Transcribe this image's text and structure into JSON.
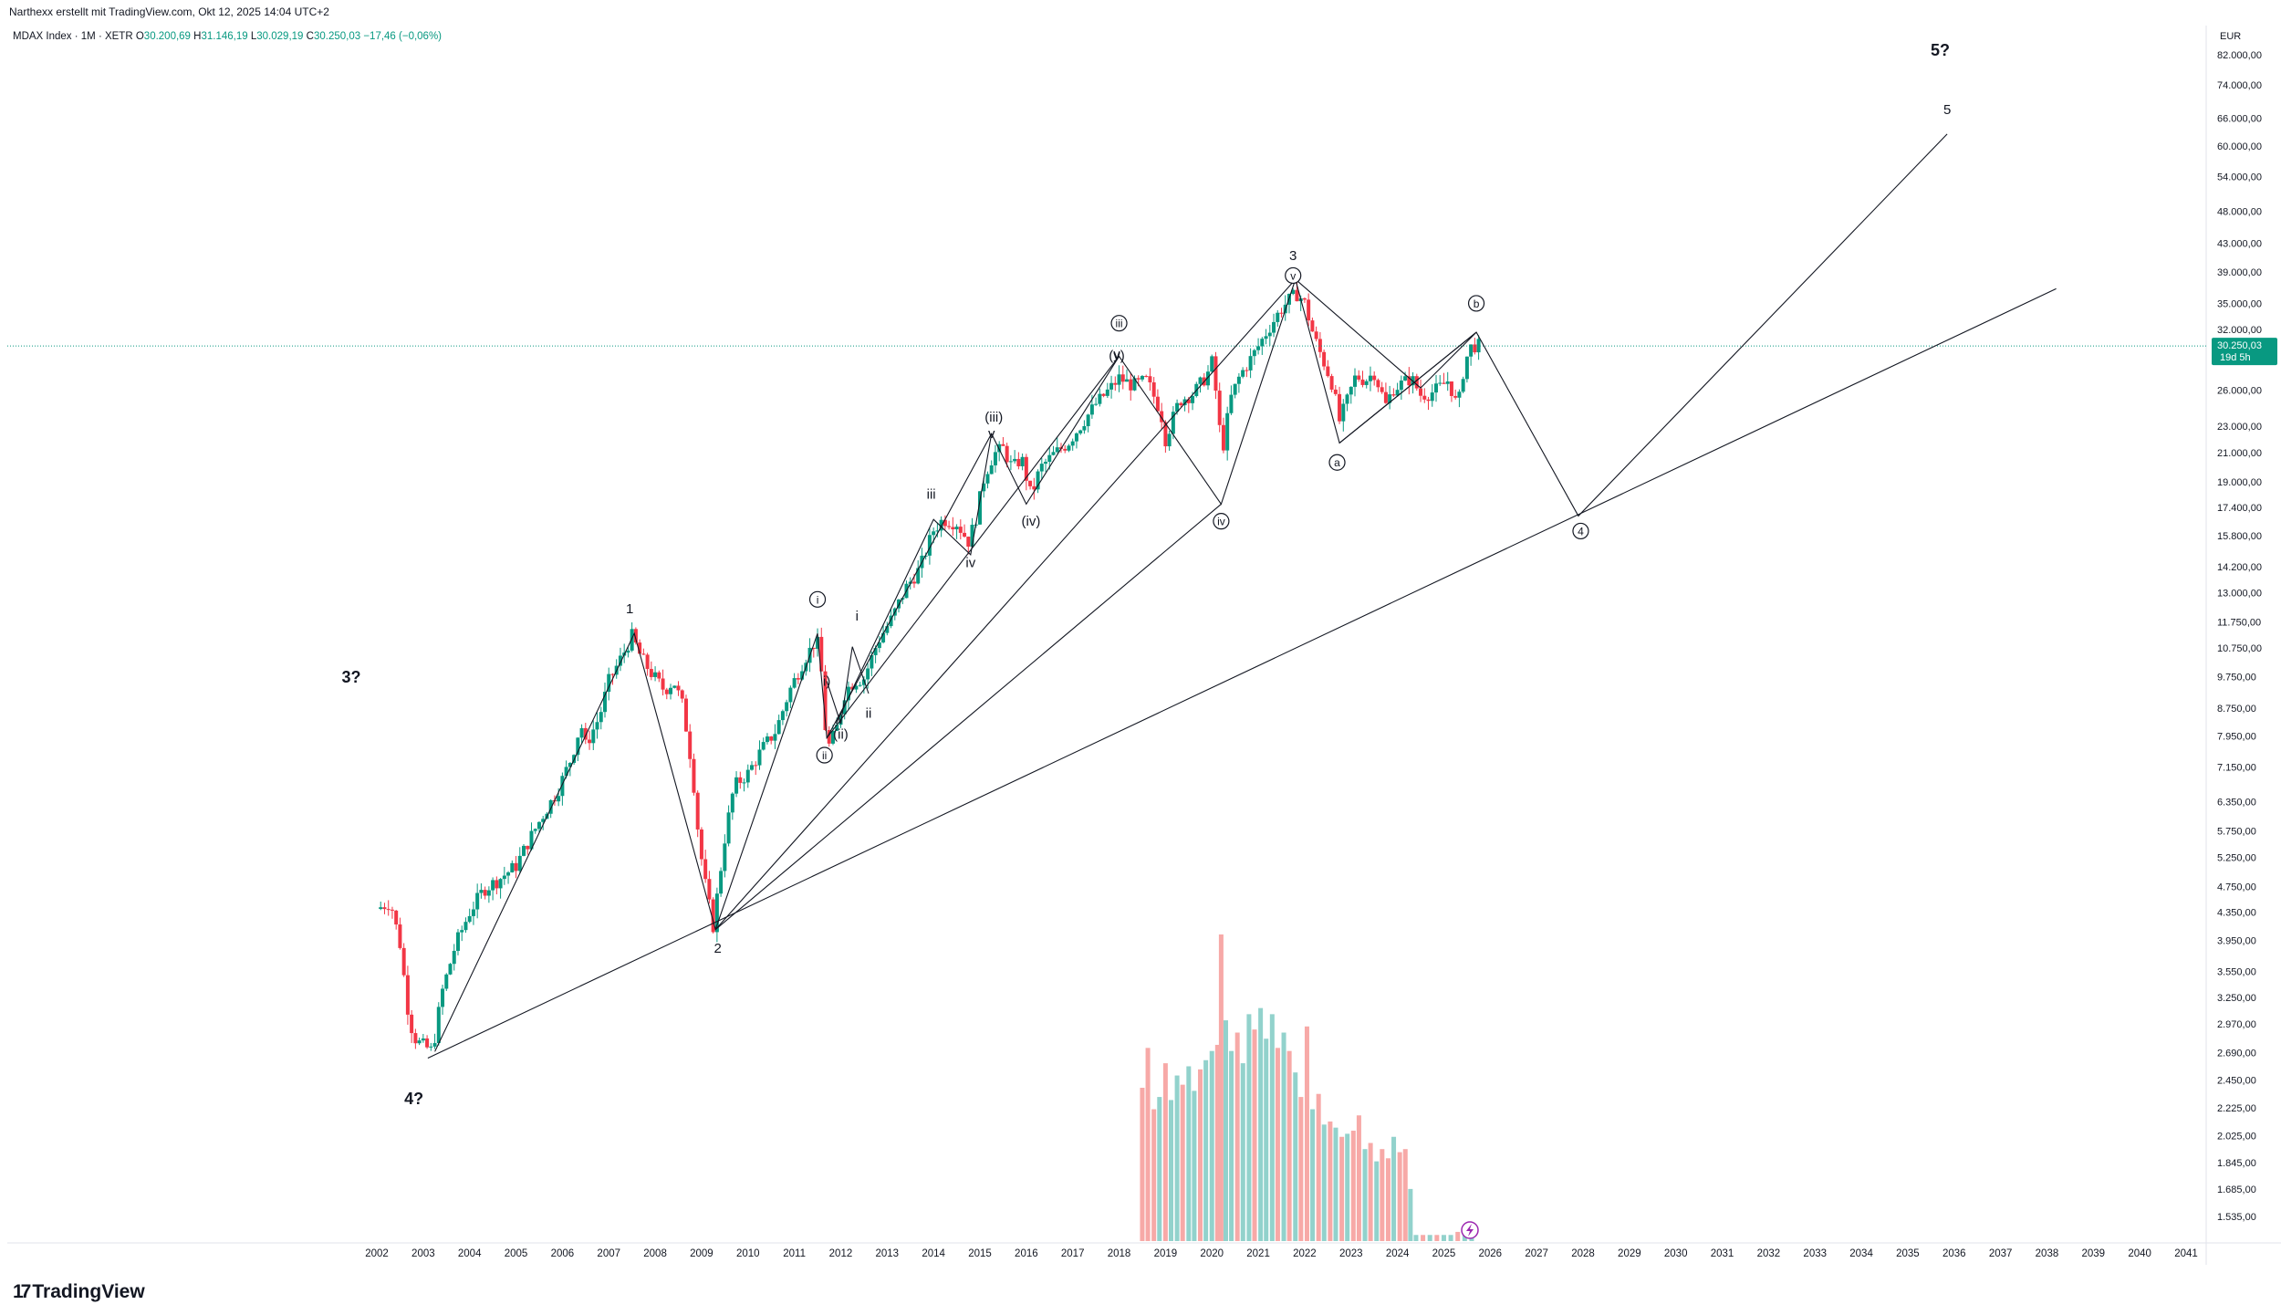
{
  "header": {
    "attribution": "Narthexx erstellt mit TradingView.com, Okt 12, 2025 14:04 UTC+2",
    "symbol": "MDAX Index · 1M · XETR",
    "ohlc": {
      "o_label": "O",
      "o": "30.200,69",
      "h_label": "H",
      "h": "31.146,19",
      "l_label": "L",
      "l": "30.029,19",
      "c_label": "C",
      "c": "30.250,03",
      "change": "−17,46 (−0,06%)"
    }
  },
  "logo": {
    "mark": "17",
    "text": "TradingView"
  },
  "colors": {
    "up": "#089981",
    "down": "#f23645",
    "vol_up": "#92d2cc",
    "vol_down": "#f7a9a7",
    "price_line": "#089981",
    "line": "#131722",
    "grid": "#f0f3fa"
  },
  "chart_data": {
    "type": "candlestick",
    "title": "MDAX Index · 1M · XETR",
    "currency": "EUR",
    "y_scale": "log",
    "ylim": [
      1450,
      84000
    ],
    "xlim": [
      2001.9,
      2041.9
    ],
    "y_ticks": [
      {
        "v": 82000,
        "label": "82.000,00"
      },
      {
        "v": 74000,
        "label": "74.000,00"
      },
      {
        "v": 66000,
        "label": "66.000,00"
      },
      {
        "v": 60000,
        "label": "60.000,00"
      },
      {
        "v": 54000,
        "label": "54.000,00"
      },
      {
        "v": 48000,
        "label": "48.000,00"
      },
      {
        "v": 43000,
        "label": "43.000,00"
      },
      {
        "v": 39000,
        "label": "39.000,00"
      },
      {
        "v": 35000,
        "label": "35.000,00"
      },
      {
        "v": 32000,
        "label": "32.000,00"
      },
      {
        "v": 26000,
        "label": "26.000,00"
      },
      {
        "v": 23000,
        "label": "23.000,00"
      },
      {
        "v": 21000,
        "label": "21.000,00"
      },
      {
        "v": 19000,
        "label": "19.000,00"
      },
      {
        "v": 17400,
        "label": "17.400,00"
      },
      {
        "v": 15800,
        "label": "15.800,00"
      },
      {
        "v": 14200,
        "label": "14.200,00"
      },
      {
        "v": 13000,
        "label": "13.000,00"
      },
      {
        "v": 11750,
        "label": "11.750,00"
      },
      {
        "v": 10750,
        "label": "10.750,00"
      },
      {
        "v": 9750,
        "label": "9.750,00"
      },
      {
        "v": 8750,
        "label": "8.750,00"
      },
      {
        "v": 7950,
        "label": "7.950,00"
      },
      {
        "v": 7150,
        "label": "7.150,00"
      },
      {
        "v": 6350,
        "label": "6.350,00"
      },
      {
        "v": 5750,
        "label": "5.750,00"
      },
      {
        "v": 5250,
        "label": "5.250,00"
      },
      {
        "v": 4750,
        "label": "4.750,00"
      },
      {
        "v": 4350,
        "label": "4.350,00"
      },
      {
        "v": 3950,
        "label": "3.950,00"
      },
      {
        "v": 3550,
        "label": "3.550,00"
      },
      {
        "v": 3250,
        "label": "3.250,00"
      },
      {
        "v": 2970,
        "label": "2.970,00"
      },
      {
        "v": 2690,
        "label": "2.690,00"
      },
      {
        "v": 2450,
        "label": "2.450,00"
      },
      {
        "v": 2225,
        "label": "2.225,00"
      },
      {
        "v": 2025,
        "label": "2.025,00"
      },
      {
        "v": 1845,
        "label": "1.845,00"
      },
      {
        "v": 1685,
        "label": "1.685,00"
      },
      {
        "v": 1535,
        "label": "1.535,00"
      }
    ],
    "x_ticks": [
      "2002",
      "2003",
      "2004",
      "2005",
      "2006",
      "2007",
      "2008",
      "2009",
      "2010",
      "2011",
      "2012",
      "2013",
      "2014",
      "2015",
      "2016",
      "2017",
      "2018",
      "2019",
      "2020",
      "2021",
      "2022",
      "2023",
      "2024",
      "2025",
      "2026",
      "2027",
      "2028",
      "2029",
      "2030",
      "2031",
      "2032",
      "2033",
      "2034",
      "2035",
      "2036",
      "2037",
      "2038",
      "2039",
      "2040",
      "2041"
    ],
    "currency_label": "EUR",
    "last_price": {
      "value": 30250.03,
      "label": "30.250,03",
      "countdown": "19d 5h"
    },
    "price_path": [
      [
        2002.0,
        4400
      ],
      [
        2002.3,
        4500
      ],
      [
        2002.5,
        3900
      ],
      [
        2002.7,
        3000
      ],
      [
        2002.85,
        2800
      ],
      [
        2003.2,
        2700
      ],
      [
        2003.4,
        3300
      ],
      [
        2003.7,
        3900
      ],
      [
        2004.0,
        4350
      ],
      [
        2004.3,
        4700
      ],
      [
        2004.6,
        4850
      ],
      [
        2005.0,
        5100
      ],
      [
        2005.3,
        5600
      ],
      [
        2005.6,
        6100
      ],
      [
        2005.9,
        6600
      ],
      [
        2006.2,
        7400
      ],
      [
        2006.4,
        8300
      ],
      [
        2006.5,
        7700
      ],
      [
        2006.8,
        8500
      ],
      [
        2007.0,
        9600
      ],
      [
        2007.3,
        10500
      ],
      [
        2007.5,
        11200
      ],
      [
        2007.7,
        10400
      ],
      [
        2007.9,
        9900
      ],
      [
        2008.2,
        9300
      ],
      [
        2008.4,
        9600
      ],
      [
        2008.6,
        8800
      ],
      [
        2008.8,
        7100
      ],
      [
        2008.95,
        5500
      ],
      [
        2009.1,
        4700
      ],
      [
        2009.25,
        4150
      ],
      [
        2009.5,
        5600
      ],
      [
        2009.7,
        6700
      ],
      [
        2010.0,
        7000
      ],
      [
        2010.3,
        7600
      ],
      [
        2010.6,
        8100
      ],
      [
        2010.9,
        9300
      ],
      [
        2011.2,
        10300
      ],
      [
        2011.45,
        11000
      ],
      [
        2011.55,
        10800
      ],
      [
        2011.65,
        8300
      ],
      [
        2011.75,
        7700
      ],
      [
        2011.9,
        8100
      ],
      [
        2012.1,
        9300
      ],
      [
        2012.3,
        9600
      ],
      [
        2012.5,
        9700
      ],
      [
        2012.8,
        11000
      ],
      [
        2013.1,
        11900
      ],
      [
        2013.4,
        13200
      ],
      [
        2013.7,
        14100
      ],
      [
        2014.0,
        16100
      ],
      [
        2014.2,
        16700
      ],
      [
        2014.5,
        16500
      ],
      [
        2014.75,
        15500
      ],
      [
        2014.9,
        16600
      ],
      [
        2015.1,
        19400
      ],
      [
        2015.3,
        20900
      ],
      [
        2015.5,
        21300
      ],
      [
        2015.7,
        19900
      ],
      [
        2015.9,
        20600
      ],
      [
        2016.1,
        18100
      ],
      [
        2016.3,
        19900
      ],
      [
        2016.6,
        20900
      ],
      [
        2016.9,
        21700
      ],
      [
        2017.2,
        23200
      ],
      [
        2017.5,
        24800
      ],
      [
        2017.8,
        26100
      ],
      [
        2018.0,
        27100
      ],
      [
        2018.3,
        26400
      ],
      [
        2018.6,
        26900
      ],
      [
        2018.9,
        24100
      ],
      [
        2019.0,
        22000
      ],
      [
        2019.3,
        25100
      ],
      [
        2019.6,
        25700
      ],
      [
        2019.9,
        27400
      ],
      [
        2020.0,
        28600
      ],
      [
        2020.15,
        24000
      ],
      [
        2020.2,
        20500
      ],
      [
        2020.4,
        25200
      ],
      [
        2020.6,
        27300
      ],
      [
        2020.9,
        29400
      ],
      [
        2021.2,
        31900
      ],
      [
        2021.5,
        34400
      ],
      [
        2021.7,
        35600
      ],
      [
        2021.85,
        36200
      ],
      [
        2022.0,
        35000
      ],
      [
        2022.2,
        31200
      ],
      [
        2022.45,
        28200
      ],
      [
        2022.6,
        26500
      ],
      [
        2022.75,
        23400
      ],
      [
        2022.9,
        24900
      ],
      [
        2023.1,
        27300
      ],
      [
        2023.3,
        26900
      ],
      [
        2023.5,
        27600
      ],
      [
        2023.75,
        24700
      ],
      [
        2023.9,
        26100
      ],
      [
        2024.1,
        26600
      ],
      [
        2024.3,
        27100
      ],
      [
        2024.5,
        25600
      ],
      [
        2024.7,
        25700
      ],
      [
        2024.9,
        26200
      ],
      [
        2025.1,
        26900
      ],
      [
        2025.3,
        24400
      ],
      [
        2025.45,
        28600
      ],
      [
        2025.6,
        30300
      ],
      [
        2025.8,
        30250
      ]
    ],
    "volume": [
      {
        "x": 2018.5,
        "v": 0.5,
        "up": false
      },
      {
        "x": 2018.62,
        "v": 0.63,
        "up": false
      },
      {
        "x": 2018.75,
        "v": 0.43,
        "up": false
      },
      {
        "x": 2018.87,
        "v": 0.47,
        "up": true
      },
      {
        "x": 2019.0,
        "v": 0.58,
        "up": false
      },
      {
        "x": 2019.12,
        "v": 0.46,
        "up": true
      },
      {
        "x": 2019.25,
        "v": 0.54,
        "up": true
      },
      {
        "x": 2019.37,
        "v": 0.51,
        "up": false
      },
      {
        "x": 2019.5,
        "v": 0.57,
        "up": true
      },
      {
        "x": 2019.62,
        "v": 0.49,
        "up": true
      },
      {
        "x": 2019.75,
        "v": 0.56,
        "up": false
      },
      {
        "x": 2019.87,
        "v": 0.59,
        "up": true
      },
      {
        "x": 2020.0,
        "v": 0.62,
        "up": true
      },
      {
        "x": 2020.12,
        "v": 0.64,
        "up": false
      },
      {
        "x": 2020.2,
        "v": 1.0,
        "up": false
      },
      {
        "x": 2020.3,
        "v": 0.72,
        "up": true
      },
      {
        "x": 2020.42,
        "v": 0.62,
        "up": true
      },
      {
        "x": 2020.55,
        "v": 0.68,
        "up": false
      },
      {
        "x": 2020.67,
        "v": 0.58,
        "up": true
      },
      {
        "x": 2020.8,
        "v": 0.74,
        "up": true
      },
      {
        "x": 2020.92,
        "v": 0.69,
        "up": false
      },
      {
        "x": 2021.05,
        "v": 0.76,
        "up": true
      },
      {
        "x": 2021.17,
        "v": 0.66,
        "up": true
      },
      {
        "x": 2021.3,
        "v": 0.74,
        "up": true
      },
      {
        "x": 2021.42,
        "v": 0.63,
        "up": false
      },
      {
        "x": 2021.55,
        "v": 0.68,
        "up": true
      },
      {
        "x": 2021.67,
        "v": 0.62,
        "up": false
      },
      {
        "x": 2021.8,
        "v": 0.55,
        "up": true
      },
      {
        "x": 2021.92,
        "v": 0.47,
        "up": false
      },
      {
        "x": 2022.05,
        "v": 0.7,
        "up": false
      },
      {
        "x": 2022.17,
        "v": 0.43,
        "up": true
      },
      {
        "x": 2022.3,
        "v": 0.48,
        "up": false
      },
      {
        "x": 2022.42,
        "v": 0.38,
        "up": true
      },
      {
        "x": 2022.55,
        "v": 0.39,
        "up": false
      },
      {
        "x": 2022.67,
        "v": 0.37,
        "up": true
      },
      {
        "x": 2022.8,
        "v": 0.34,
        "up": false
      },
      {
        "x": 2022.92,
        "v": 0.35,
        "up": true
      },
      {
        "x": 2023.05,
        "v": 0.36,
        "up": false
      },
      {
        "x": 2023.17,
        "v": 0.41,
        "up": false
      },
      {
        "x": 2023.3,
        "v": 0.3,
        "up": true
      },
      {
        "x": 2023.42,
        "v": 0.32,
        "up": false
      },
      {
        "x": 2023.55,
        "v": 0.26,
        "up": true
      },
      {
        "x": 2023.67,
        "v": 0.3,
        "up": false
      },
      {
        "x": 2023.8,
        "v": 0.27,
        "up": false
      },
      {
        "x": 2023.92,
        "v": 0.34,
        "up": true
      },
      {
        "x": 2024.05,
        "v": 0.29,
        "up": false
      },
      {
        "x": 2024.17,
        "v": 0.3,
        "up": false
      },
      {
        "x": 2024.28,
        "v": 0.17,
        "up": true
      },
      {
        "x": 2024.4,
        "v": 0.02,
        "up": true
      },
      {
        "x": 2024.55,
        "v": 0.02,
        "up": false
      },
      {
        "x": 2024.7,
        "v": 0.02,
        "up": true
      },
      {
        "x": 2024.85,
        "v": 0.02,
        "up": false
      },
      {
        "x": 2025.0,
        "v": 0.02,
        "up": true
      },
      {
        "x": 2025.15,
        "v": 0.02,
        "up": true
      },
      {
        "x": 2025.3,
        "v": 0.03,
        "up": false
      },
      {
        "x": 2025.45,
        "v": 0.02,
        "up": true
      },
      {
        "x": 2025.6,
        "v": 0.02,
        "up": true
      }
    ],
    "wave_lines": [
      {
        "name": "primary",
        "points": [
          [
            2003.25,
            2700
          ],
          [
            2007.55,
            11300
          ],
          [
            2009.3,
            4100
          ],
          [
            2021.8,
            38000
          ],
          [
            2022.75,
            21700
          ],
          [
            2025.7,
            31700
          ],
          [
            2027.9,
            16900
          ],
          [
            2035.85,
            62500
          ]
        ]
      },
      {
        "name": "trend-line",
        "points": [
          [
            2003.1,
            2640
          ],
          [
            2038.2,
            36800
          ]
        ]
      },
      {
        "name": "start-to-iv",
        "points": [
          [
            2009.3,
            4100
          ],
          [
            2020.2,
            17600
          ]
        ]
      },
      {
        "name": "intermediate",
        "points": [
          [
            2009.3,
            4100
          ],
          [
            2011.5,
            11300
          ],
          [
            2011.7,
            7900
          ],
          [
            2018.0,
            29200
          ],
          [
            2020.2,
            17600
          ],
          [
            2021.8,
            38000
          ]
        ]
      },
      {
        "name": "minor",
        "points": [
          [
            2011.7,
            7900
          ],
          [
            2015.25,
            22400
          ],
          [
            2016.0,
            17600
          ],
          [
            2018.0,
            29200
          ]
        ]
      },
      {
        "name": "minute",
        "points": [
          [
            2011.9,
            8300
          ],
          [
            2014.0,
            16700
          ],
          [
            2014.8,
            14800
          ],
          [
            2015.25,
            22400
          ]
        ]
      },
      {
        "name": "minuette",
        "points": [
          [
            2012.6,
            9200
          ],
          [
            2012.25,
            10800
          ],
          [
            2012.0,
            8300
          ],
          [
            2011.7,
            9600
          ]
        ]
      },
      {
        "name": "b-to-4",
        "points": [
          [
            2021.8,
            38000
          ],
          [
            2024.5,
            26200
          ],
          [
            2025.7,
            31700
          ],
          [
            2022.75,
            21700
          ]
        ]
      }
    ],
    "wave_labels": [
      {
        "text": "1",
        "x": 2007.45,
        "y": 12300,
        "style": "plain"
      },
      {
        "text": "2",
        "x": 2009.35,
        "y": 3850,
        "style": "plain"
      },
      {
        "text": "3",
        "x": 2021.75,
        "y": 41200,
        "style": "plain"
      },
      {
        "text": "4",
        "x": 2027.95,
        "y": 16050,
        "style": "circle"
      },
      {
        "text": "5",
        "x": 2035.85,
        "y": 68000,
        "style": "plain"
      },
      {
        "text": "3?",
        "x": 2001.45,
        "y": 9700,
        "style": "bold"
      },
      {
        "text": "4?",
        "x": 2002.8,
        "y": 2290,
        "style": "bold"
      },
      {
        "text": "5?",
        "x": 2035.7,
        "y": 83000,
        "style": "bold"
      },
      {
        "text": "i",
        "x": 2011.5,
        "y": 12700,
        "style": "circle"
      },
      {
        "text": "ii",
        "x": 2011.65,
        "y": 7450,
        "style": "circle"
      },
      {
        "text": "iii",
        "x": 2018.0,
        "y": 32700,
        "style": "circle"
      },
      {
        "text": "iv",
        "x": 2020.2,
        "y": 16600,
        "style": "circle"
      },
      {
        "text": "v",
        "x": 2021.75,
        "y": 38500,
        "style": "circle"
      },
      {
        "text": "a",
        "x": 2022.7,
        "y": 20300,
        "style": "circle"
      },
      {
        "text": "b",
        "x": 2025.7,
        "y": 35000,
        "style": "circle"
      },
      {
        "text": "(iii)",
        "x": 2015.3,
        "y": 23700,
        "style": "plain"
      },
      {
        "text": "(iv)",
        "x": 2016.1,
        "y": 16600,
        "style": "plain"
      },
      {
        "text": "(v)",
        "x": 2017.95,
        "y": 29300,
        "style": "plain"
      },
      {
        "text": "(ii)",
        "x": 2012.0,
        "y": 8000,
        "style": "plain"
      },
      {
        "text": "i)",
        "x": 2011.7,
        "y": 9600,
        "style": "plain"
      },
      {
        "text": "iii",
        "x": 2013.95,
        "y": 18200,
        "style": "plain"
      },
      {
        "text": "iv",
        "x": 2014.8,
        "y": 14400,
        "style": "plain"
      },
      {
        "text": "i",
        "x": 2012.35,
        "y": 12000,
        "style": "plain"
      },
      {
        "text": "ii",
        "x": 2012.6,
        "y": 8600,
        "style": "plain"
      },
      {
        "text": "v",
        "x": 2015.25,
        "y": 22400,
        "style": "plain"
      },
      {
        "text": "y",
        "x": 2017.95,
        "y": 29400,
        "style": "plain"
      }
    ]
  }
}
